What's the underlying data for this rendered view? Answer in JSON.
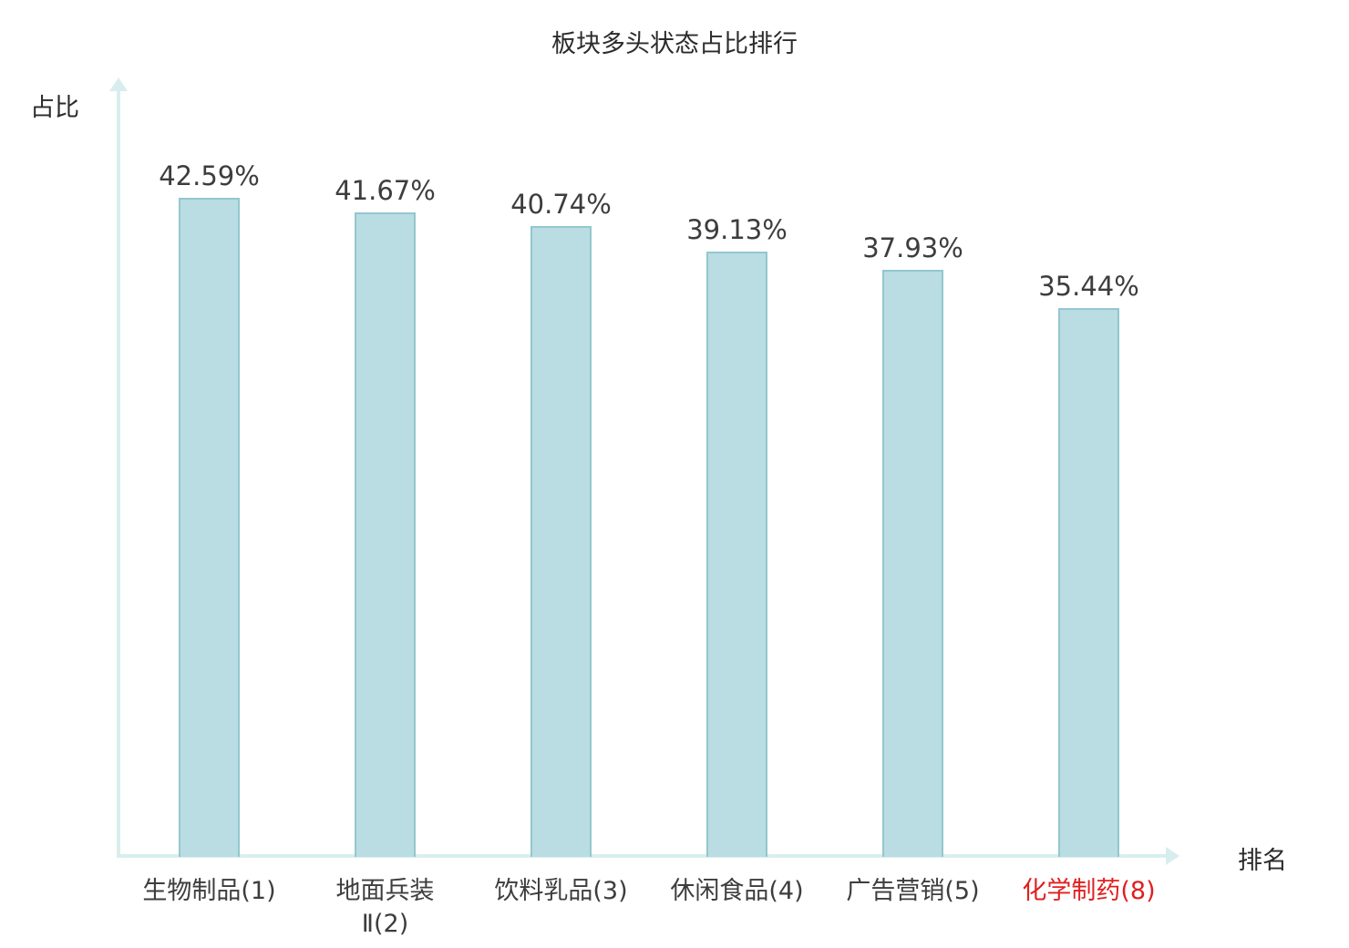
{
  "chart_data": {
    "type": "bar",
    "title": "板块多头状态占比排行",
    "ylabel": "占比",
    "xlabel": "排名",
    "categories": [
      "生物制品(1)",
      "地面兵装Ⅱ(2)",
      "饮料乳品(3)",
      "休闲食品(4)",
      "广告营销(5)",
      "化学制药(8)"
    ],
    "category_lines": [
      [
        "生物制品(1)"
      ],
      [
        "地面兵装",
        "Ⅱ(2)"
      ],
      [
        "饮料乳品(3)"
      ],
      [
        "休闲食品(4)"
      ],
      [
        "广告营销(5)"
      ],
      [
        "化学制药(8)"
      ]
    ],
    "values": [
      42.59,
      41.67,
      40.74,
      39.13,
      37.93,
      35.44
    ],
    "value_labels": [
      "42.59%",
      "41.67%",
      "40.74%",
      "39.13%",
      "37.93%",
      "35.44%"
    ],
    "highlight_index": 5,
    "ylim": [
      0,
      50
    ],
    "grid": false,
    "legend": "none",
    "colors": {
      "bar_fill": "#b9dde2",
      "bar_border": "#93c7cf",
      "axis": "#d8eeee",
      "text": "#3d3d3d",
      "title_text": "#2b2b2b",
      "highlight_text": "#e01f1f",
      "background": "#ffffff"
    }
  }
}
